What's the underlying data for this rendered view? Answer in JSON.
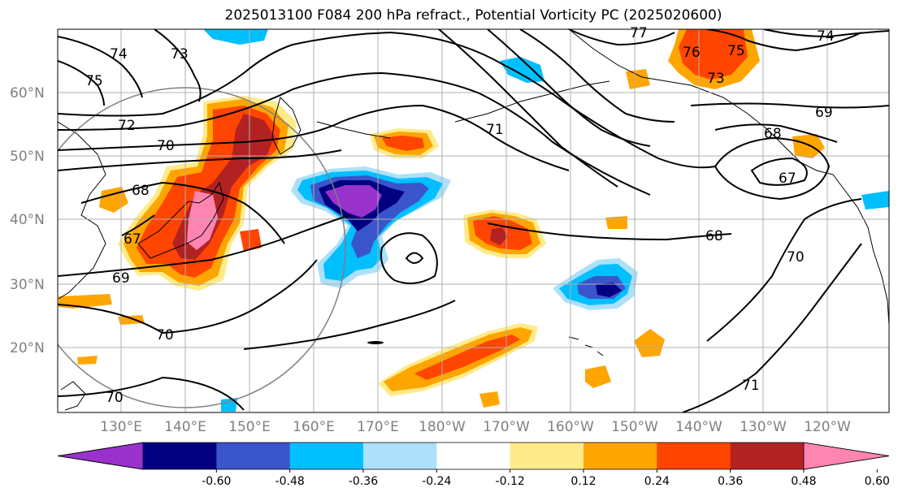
{
  "title": "2025013100 F084 200 hPa refract., Potential Vorticity PC (2025020600)",
  "lat_labels": [
    "60°N",
    "50°N",
    "40°N",
    "30°N",
    "20°N"
  ],
  "lon_labels": [
    "130°E",
    "140°E",
    "150°E",
    "160°E",
    "170°E",
    "180°W",
    "170°W",
    "160°W",
    "150°W",
    "140°W",
    "130°W",
    "120°W"
  ],
  "colorbar": {
    "colors": [
      "#9932CC",
      "#000080",
      "#3A55CC",
      "#00BFFF",
      "#ADE0FA",
      "#FFFFFF",
      "#FFEB8A",
      "#FFA500",
      "#FF4500",
      "#B22222",
      "#FF85B0"
    ],
    "tick_labels": [
      "-0.60",
      "-0.48",
      "-0.36",
      "-0.24",
      "-0.12",
      "0.12",
      "0.24",
      "0.36",
      "0.48",
      "0.60"
    ]
  },
  "contour_labels": [
    "74",
    "73",
    "75",
    "72",
    "70",
    "68",
    "67",
    "69",
    "70",
    "70",
    "71",
    "76",
    "75",
    "73",
    "74",
    "77",
    "69",
    "68",
    "67",
    "68",
    "70",
    "71"
  ]
}
